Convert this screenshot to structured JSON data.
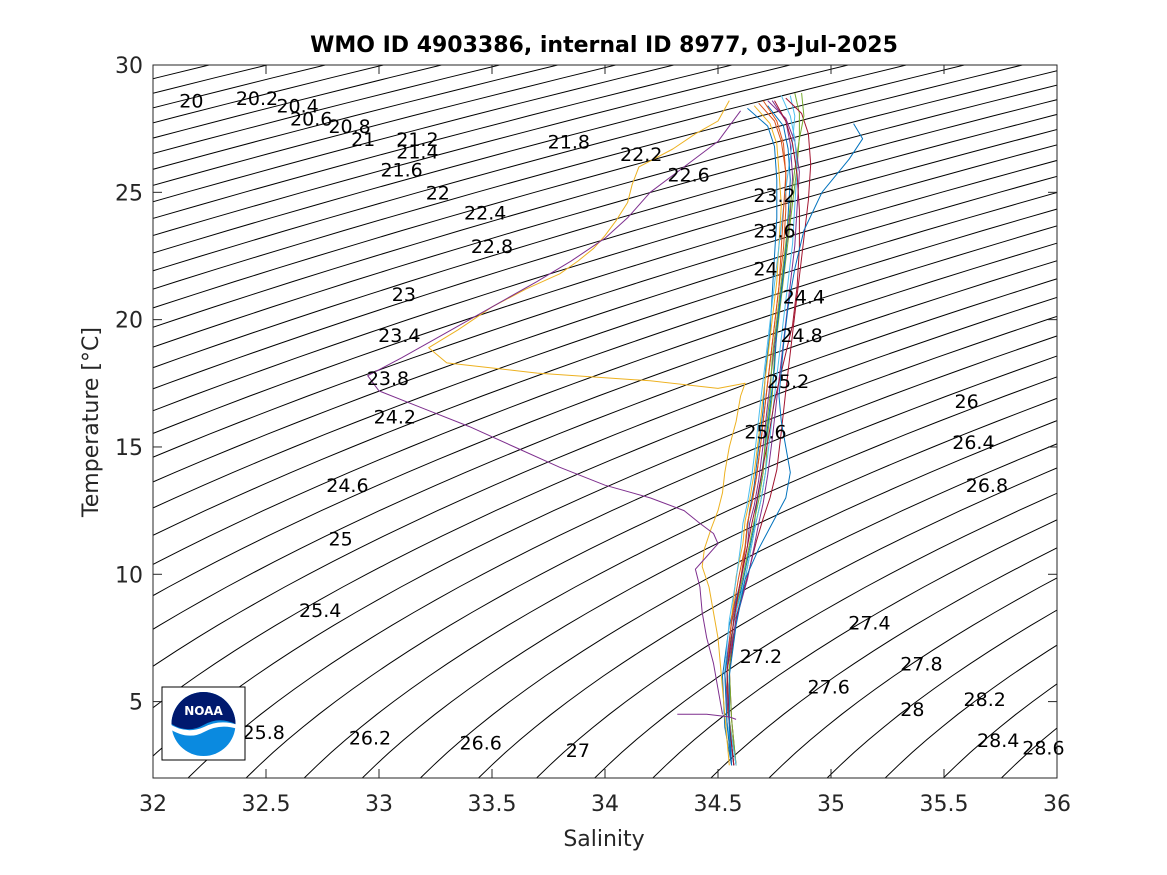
{
  "chart_data": {
    "type": "line",
    "title": "WMO ID 4903386, internal ID 8977, 03-Jul-2025",
    "xlabel": "Salinity",
    "ylabel": "Temperature [°C]",
    "xlim": [
      32,
      36
    ],
    "ylim": [
      2,
      30
    ],
    "xticks": [
      "32",
      "32.5",
      "33",
      "33.5",
      "34",
      "34.5",
      "35",
      "35.5",
      "36"
    ],
    "yticks": [
      "5",
      "10",
      "15",
      "20",
      "25",
      "30"
    ],
    "grid": false,
    "legend": "none",
    "logo_text": "NOAA",
    "density_contour_labels": [
      {
        "text": "20",
        "s": 32.17,
        "t": 28.6
      },
      {
        "text": "20.2",
        "s": 32.46,
        "t": 28.7
      },
      {
        "text": "20.4",
        "s": 32.64,
        "t": 28.4
      },
      {
        "text": "20.6",
        "s": 32.7,
        "t": 27.9
      },
      {
        "text": "20.8",
        "s": 32.87,
        "t": 27.6
      },
      {
        "text": "21",
        "s": 32.93,
        "t": 27.1
      },
      {
        "text": "21.2",
        "s": 33.17,
        "t": 27.1
      },
      {
        "text": "21.4",
        "s": 33.17,
        "t": 26.6
      },
      {
        "text": "21.6",
        "s": 33.1,
        "t": 25.9
      },
      {
        "text": "21.8",
        "s": 33.84,
        "t": 27.0
      },
      {
        "text": "22",
        "s": 33.26,
        "t": 25.0
      },
      {
        "text": "22.2",
        "s": 34.16,
        "t": 26.5
      },
      {
        "text": "22.4",
        "s": 33.47,
        "t": 24.2
      },
      {
        "text": "22.6",
        "s": 34.37,
        "t": 25.7
      },
      {
        "text": "22.8",
        "s": 33.5,
        "t": 22.9
      },
      {
        "text": "23",
        "s": 33.11,
        "t": 21.0
      },
      {
        "text": "23.2",
        "s": 34.75,
        "t": 24.9
      },
      {
        "text": "23.4",
        "s": 33.09,
        "t": 19.4
      },
      {
        "text": "23.6",
        "s": 34.75,
        "t": 23.5
      },
      {
        "text": "23.8",
        "s": 33.04,
        "t": 17.7
      },
      {
        "text": "24",
        "s": 34.71,
        "t": 22.0
      },
      {
        "text": "24.2",
        "s": 33.07,
        "t": 16.2
      },
      {
        "text": "24.4",
        "s": 34.88,
        "t": 20.9
      },
      {
        "text": "24.6",
        "s": 32.86,
        "t": 13.5
      },
      {
        "text": "24.8",
        "s": 34.87,
        "t": 19.4
      },
      {
        "text": "25",
        "s": 32.83,
        "t": 11.4
      },
      {
        "text": "25.2",
        "s": 34.81,
        "t": 17.6
      },
      {
        "text": "25.4",
        "s": 32.74,
        "t": 8.6
      },
      {
        "text": "25.6",
        "s": 34.71,
        "t": 15.6
      },
      {
        "text": "25.8",
        "s": 32.49,
        "t": 3.8
      },
      {
        "text": "26",
        "s": 35.6,
        "t": 16.8
      },
      {
        "text": "26.2",
        "s": 32.96,
        "t": 3.6
      },
      {
        "text": "26.4",
        "s": 35.63,
        "t": 15.2
      },
      {
        "text": "26.6",
        "s": 33.45,
        "t": 3.4
      },
      {
        "text": "26.8",
        "s": 35.69,
        "t": 13.5
      },
      {
        "text": "27",
        "s": 33.88,
        "t": 3.1
      },
      {
        "text": "27.2",
        "s": 34.69,
        "t": 6.8
      },
      {
        "text": "27.4",
        "s": 35.17,
        "t": 8.1
      },
      {
        "text": "27.6",
        "s": 34.99,
        "t": 5.6
      },
      {
        "text": "27.8",
        "s": 35.4,
        "t": 6.5
      },
      {
        "text": "28",
        "s": 35.36,
        "t": 4.7
      },
      {
        "text": "28.2",
        "s": 35.68,
        "t": 5.1
      },
      {
        "text": "28.4",
        "s": 35.74,
        "t": 3.5
      },
      {
        "text": "28.6",
        "s": 35.94,
        "t": 3.2
      }
    ],
    "series": [
      {
        "color": "#0072BD",
        "s": [
          34.56,
          34.53,
          34.52,
          34.55,
          34.6,
          34.62,
          34.63,
          34.64,
          34.66,
          34.68,
          34.7,
          34.71,
          34.73,
          34.74,
          34.75,
          34.76,
          34.76,
          34.75,
          34.72,
          34.63
        ],
        "t": [
          2.5,
          4.0,
          6.0,
          8.0,
          9.7,
          11.0,
          11.8,
          12.5,
          13.5,
          15.0,
          16.5,
          18.0,
          19.5,
          21.0,
          22.5,
          24.0,
          25.5,
          26.8,
          27.6,
          28.3
        ]
      },
      {
        "color": "#D95319",
        "s": [
          34.56,
          34.54,
          34.54,
          34.57,
          34.6,
          34.62,
          34.63,
          34.65,
          34.67,
          34.69,
          34.71,
          34.73,
          34.75,
          34.77,
          34.79,
          34.8,
          34.8,
          34.78,
          34.75,
          34.68
        ],
        "t": [
          2.5,
          4.2,
          6.2,
          8.2,
          9.8,
          11.0,
          12.0,
          12.8,
          13.8,
          15.2,
          16.8,
          18.3,
          19.8,
          21.3,
          22.8,
          24.3,
          25.8,
          27.0,
          27.8,
          28.5
        ]
      },
      {
        "color": "#EDB120",
        "s": [
          34.58,
          34.55,
          34.54,
          34.56,
          34.58,
          34.61,
          34.62,
          34.64,
          34.66,
          34.68,
          34.7,
          34.72,
          34.74,
          34.76,
          34.77,
          34.78,
          34.77,
          34.76,
          34.73,
          34.66
        ],
        "t": [
          2.5,
          4.3,
          6.3,
          8.3,
          9.9,
          11.2,
          12.1,
          12.9,
          14.0,
          15.4,
          17.0,
          18.5,
          20.0,
          21.5,
          23.0,
          24.5,
          25.8,
          26.9,
          27.7,
          28.4
        ]
      },
      {
        "color": "#7E2F8E",
        "s": [
          34.57,
          34.55,
          34.53,
          34.56,
          34.6,
          34.63,
          34.64,
          34.66,
          34.68,
          34.7,
          34.72,
          34.74,
          34.76,
          34.78,
          34.8,
          34.82,
          34.83,
          34.82,
          34.8,
          34.74
        ],
        "t": [
          2.5,
          4.1,
          6.1,
          8.1,
          9.7,
          11.1,
          12.0,
          12.7,
          13.7,
          15.1,
          16.7,
          18.2,
          19.7,
          21.2,
          22.7,
          24.2,
          25.6,
          26.9,
          27.8,
          28.6
        ]
      },
      {
        "color": "#77AC30",
        "s": [
          34.58,
          34.55,
          34.55,
          34.58,
          34.62,
          34.65,
          34.67,
          34.69,
          34.71,
          34.72,
          34.74,
          34.75,
          34.77,
          34.79,
          34.81,
          34.83,
          34.85,
          34.86,
          34.86,
          34.84
        ],
        "t": [
          2.5,
          4.3,
          6.3,
          8.2,
          9.8,
          11.2,
          12.1,
          12.9,
          14.0,
          15.5,
          17.0,
          18.6,
          20.1,
          21.6,
          23.1,
          24.6,
          26.0,
          27.2,
          28.1,
          28.9
        ]
      },
      {
        "color": "#4DBEEE",
        "s": [
          34.57,
          34.54,
          34.53,
          34.55,
          34.58,
          34.6,
          34.61,
          34.63,
          34.65,
          34.67,
          34.69,
          34.71,
          34.73,
          34.75,
          34.77,
          34.79,
          34.81,
          34.83,
          34.84,
          34.82
        ],
        "t": [
          2.5,
          4.2,
          6.2,
          8.2,
          9.8,
          11.1,
          12.0,
          12.8,
          13.9,
          15.3,
          16.9,
          18.4,
          19.9,
          21.4,
          22.9,
          24.4,
          25.8,
          27.0,
          28.0,
          28.8
        ]
      },
      {
        "color": "#A2142F",
        "s": [
          34.58,
          34.56,
          34.55,
          34.58,
          34.63,
          34.67,
          34.7,
          34.73,
          34.76,
          34.78,
          34.8,
          34.82,
          34.84,
          34.86,
          34.88,
          34.9,
          34.91,
          34.9,
          34.87,
          34.8
        ],
        "t": [
          2.5,
          4.3,
          6.3,
          8.3,
          9.9,
          11.3,
          12.2,
          13.0,
          14.1,
          15.6,
          17.2,
          18.7,
          20.2,
          21.7,
          23.2,
          24.7,
          26.1,
          27.3,
          28.1,
          28.7
        ]
      },
      {
        "color": "#0072BD",
        "s": [
          34.56,
          34.54,
          34.53,
          34.57,
          34.61,
          34.64,
          34.66,
          34.67,
          34.69,
          34.71,
          34.73,
          34.75,
          34.76,
          34.78,
          34.8,
          34.81,
          34.82,
          34.81,
          34.79,
          34.72
        ],
        "t": [
          2.5,
          4.1,
          6.1,
          8.1,
          9.7,
          11.0,
          11.9,
          12.7,
          13.7,
          15.1,
          16.6,
          18.1,
          19.6,
          21.1,
          22.6,
          24.1,
          25.5,
          26.7,
          27.6,
          28.4
        ]
      },
      {
        "color": "#D95319",
        "s": [
          34.57,
          34.55,
          34.54,
          34.56,
          34.59,
          34.62,
          34.63,
          34.65,
          34.67,
          34.69,
          34.71,
          34.73,
          34.75,
          34.77,
          34.78,
          34.79,
          34.8,
          34.79,
          34.76,
          34.7
        ],
        "t": [
          2.5,
          4.2,
          6.2,
          8.2,
          9.8,
          11.1,
          12.0,
          12.8,
          13.8,
          15.2,
          16.8,
          18.3,
          19.8,
          21.3,
          22.8,
          24.3,
          25.7,
          26.9,
          27.8,
          28.6
        ]
      },
      {
        "color": "#77AC30",
        "s": [
          34.58,
          34.56,
          34.55,
          34.57,
          34.61,
          34.64,
          34.66,
          34.68,
          34.7,
          34.71,
          34.73,
          34.74,
          34.76,
          34.78,
          34.8,
          34.82,
          34.84,
          34.86,
          34.88,
          34.87
        ],
        "t": [
          2.5,
          4.3,
          6.3,
          8.3,
          9.9,
          11.2,
          12.1,
          12.9,
          14.0,
          15.5,
          17.0,
          18.5,
          20.0,
          21.5,
          23.0,
          24.5,
          25.9,
          27.1,
          28.0,
          28.9
        ]
      },
      {
        "color": "#7E2F8E",
        "s": [
          34.57,
          34.55,
          34.54,
          34.58,
          34.63,
          34.66,
          34.68,
          34.7,
          34.72,
          34.74,
          34.76,
          34.78,
          34.8,
          34.82,
          34.84,
          34.85,
          34.86,
          34.84,
          34.8,
          34.72
        ],
        "t": [
          2.5,
          4.2,
          6.2,
          8.2,
          9.8,
          11.1,
          12.0,
          12.8,
          13.9,
          15.3,
          16.9,
          18.4,
          19.9,
          21.4,
          22.9,
          24.4,
          25.8,
          27.0,
          27.9,
          28.6
        ]
      },
      {
        "color": "#4DBEEE",
        "s": [
          34.58,
          34.55,
          34.54,
          34.57,
          34.62,
          34.65,
          34.67,
          34.69,
          34.71,
          34.73,
          34.75,
          34.77,
          34.79,
          34.81,
          34.83,
          34.84,
          34.85,
          34.84,
          34.82,
          34.78
        ],
        "t": [
          2.5,
          4.2,
          6.2,
          8.2,
          9.8,
          11.2,
          12.1,
          12.9,
          14.0,
          15.4,
          17.0,
          18.5,
          20.0,
          21.5,
          23.0,
          24.5,
          25.9,
          27.1,
          28.0,
          28.8
        ]
      },
      {
        "color": "#A2142F",
        "s": [
          34.57,
          34.55,
          34.54,
          34.57,
          34.6,
          34.63,
          34.65,
          34.67,
          34.69,
          34.72,
          34.75,
          34.79,
          34.83,
          34.85,
          34.86,
          34.86,
          34.85,
          34.83,
          34.8,
          34.75
        ],
        "t": [
          2.5,
          4.2,
          6.2,
          8.2,
          9.8,
          11.1,
          12.0,
          12.8,
          13.8,
          15.2,
          16.8,
          18.3,
          19.8,
          21.3,
          22.8,
          24.3,
          25.7,
          26.9,
          27.8,
          28.6
        ]
      },
      {
        "color": "#0072BD",
        "s": [
          34.56,
          34.55,
          34.55,
          34.58,
          34.62,
          34.68,
          34.74,
          34.8,
          34.82,
          34.8,
          34.78,
          34.77,
          34.78,
          34.79,
          34.81,
          34.84,
          34.88,
          34.96,
          35.08,
          35.14,
          35.1
        ],
        "t": [
          2.5,
          4.0,
          6.0,
          8.0,
          9.8,
          11.0,
          12.0,
          13.0,
          14.0,
          15.0,
          16.0,
          17.0,
          18.0,
          19.0,
          20.5,
          22.0,
          23.5,
          25.0,
          26.3,
          27.1,
          27.7
        ]
      },
      {
        "color": "#EDB120",
        "s": [
          34.55,
          34.54,
          34.53,
          34.52,
          34.51,
          34.5,
          34.48,
          34.46,
          34.43,
          34.44,
          34.47,
          34.5,
          34.52,
          34.53,
          34.55,
          34.58,
          34.6
        ],
        "t": [
          2.5,
          3.5,
          4.5,
          5.5,
          6.5,
          7.5,
          8.5,
          9.5,
          10.3,
          11.0,
          11.8,
          12.5,
          13.2,
          14.0,
          15.0,
          16.0,
          17.0
        ]
      },
      {
        "color": "#EDB120",
        "s": [
          34.6,
          34.62,
          34.5,
          34.2,
          33.7,
          33.3,
          33.22,
          33.35,
          33.5,
          33.65,
          33.8,
          33.88,
          33.95,
          34.0,
          34.05,
          34.1,
          34.12,
          34.15,
          34.3,
          34.4,
          34.5,
          34.55
        ],
        "t": [
          17.0,
          17.5,
          17.3,
          17.6,
          17.9,
          18.3,
          18.9,
          19.6,
          20.5,
          21.2,
          21.8,
          22.3,
          22.8,
          23.3,
          23.9,
          24.6,
          25.3,
          26.0,
          26.7,
          27.3,
          27.8,
          28.6
        ]
      },
      {
        "color": "#7E2F8E",
        "s": [
          34.52,
          34.5,
          34.48,
          34.45,
          34.43,
          34.42,
          34.4,
          34.45,
          34.5,
          34.48,
          34.42,
          34.35,
          34.2,
          34.0,
          33.8,
          33.6,
          33.4,
          33.2,
          33.0,
          32.95,
          33.1,
          33.3,
          33.5,
          33.7,
          33.85,
          34.0,
          34.1,
          34.2,
          34.35,
          34.5,
          34.6
        ],
        "t": [
          4.5,
          5.5,
          6.5,
          7.5,
          8.5,
          9.5,
          10.2,
          10.7,
          11.2,
          11.6,
          12.0,
          12.5,
          13.0,
          13.5,
          14.2,
          15.0,
          15.8,
          16.5,
          17.2,
          17.8,
          18.5,
          19.5,
          20.5,
          21.5,
          22.3,
          23.2,
          24.0,
          25.0,
          26.0,
          27.0,
          28.2
        ]
      },
      {
        "color": "#7E2F8E",
        "s": [
          34.32,
          34.45,
          34.55,
          34.58
        ],
        "t": [
          4.5,
          4.5,
          4.4,
          4.3
        ]
      }
    ]
  }
}
